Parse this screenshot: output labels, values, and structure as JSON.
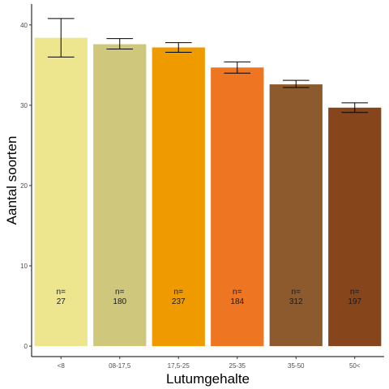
{
  "chart_data": {
    "type": "bar",
    "categories": [
      "<8",
      "08-17,5",
      "17,5-25",
      "25-35",
      "35-50",
      "50<"
    ],
    "values": [
      38.4,
      37.6,
      37.2,
      34.7,
      32.6,
      29.7
    ],
    "error_low": [
      36.0,
      37.0,
      36.6,
      34.0,
      32.2,
      29.1
    ],
    "error_high": [
      40.8,
      38.3,
      37.8,
      35.4,
      33.1,
      30.3
    ],
    "n_prefix": [
      "n=",
      "n=",
      "n=",
      "n=",
      "n=",
      "n="
    ],
    "n_values": [
      "27",
      "180",
      "237",
      "184",
      "312",
      "197"
    ],
    "colors": [
      "#eee58f",
      "#cfc87c",
      "#ef9b00",
      "#ee7622",
      "#8c5a2c",
      "#86451a"
    ],
    "yticks": [
      0,
      10,
      20,
      30,
      40
    ],
    "ytick_labels": [
      "0",
      "10",
      "20",
      "30",
      "40"
    ],
    "ylim": [
      -1.3,
      42.6
    ],
    "xlabel": "Lutumgehalte",
    "ylabel": "Aantal soorten",
    "title": "",
    "grid": false,
    "legend": "none"
  }
}
